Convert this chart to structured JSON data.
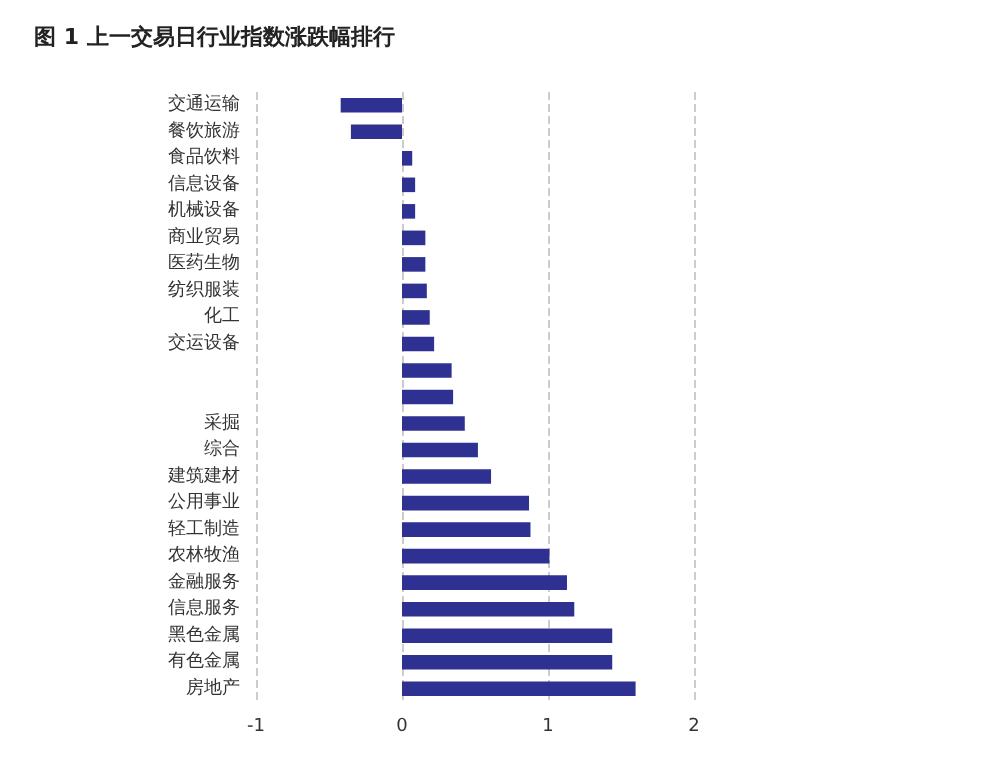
{
  "chart_data": {
    "type": "bar",
    "orientation": "horizontal",
    "title": "图 1 上一交易日行业指数涨跌幅排行",
    "categories": [
      "交通运输",
      "餐饮旅游",
      "食品饮料",
      "信息设备",
      "机械设备",
      "商业贸易",
      "医药生物",
      "纺织服装",
      "化工",
      "交运设备",
      null,
      null,
      "采掘",
      "综合",
      "建筑建材",
      "公用事业",
      "轻工制造",
      "农林牧渔",
      "金融服务",
      "信息服务",
      "黑色金属",
      "有色金属",
      "房地产"
    ],
    "values": [
      -0.42,
      -0.35,
      0.07,
      0.09,
      0.09,
      0.16,
      0.16,
      0.17,
      0.19,
      0.22,
      0.34,
      0.35,
      0.43,
      0.52,
      0.61,
      0.87,
      0.88,
      1.01,
      1.13,
      1.18,
      1.44,
      1.44,
      1.6
    ],
    "color": "#2e3192",
    "xlim": [
      -1,
      2
    ],
    "xticks": [
      -1,
      0,
      1,
      2
    ],
    "grid": "x"
  }
}
